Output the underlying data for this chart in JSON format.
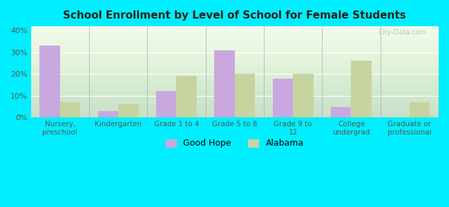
{
  "title": "School Enrollment by Level of School for Female Students",
  "categories": [
    "Nursery,\npreschool",
    "Kindergarten",
    "Grade 1 to 4",
    "Grade 5 to 8",
    "Grade 9 to\n12",
    "College\nundergrad",
    "Graduate or\nprofessional"
  ],
  "good_hope": [
    33,
    3,
    12,
    31,
    18,
    5,
    0
  ],
  "alabama": [
    7,
    6,
    19,
    20,
    20,
    26,
    7
  ],
  "good_hope_color": "#c9a8e0",
  "alabama_color": "#c8d4a0",
  "background_color": "#00eeff",
  "yticks": [
    0,
    10,
    20,
    30,
    40
  ],
  "ylim": [
    0,
    42
  ],
  "watermark": "City-Data.com",
  "legend_good_hope": "Good Hope",
  "legend_alabama": "Alabama"
}
